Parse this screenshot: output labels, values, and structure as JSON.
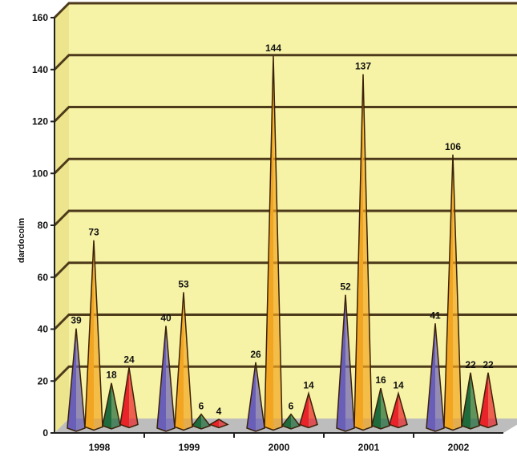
{
  "chart_data": {
    "type": "bar",
    "subtype": "3d-cone",
    "ylabel": "dardocoim",
    "ylim": [
      0,
      160
    ],
    "yticks": [
      "0",
      "20",
      "40",
      "60",
      "80",
      "100",
      "120",
      "140",
      "160"
    ],
    "categories": [
      "1998",
      "1999",
      "2000",
      "2001",
      "2002"
    ],
    "series": [
      {
        "values": [
          39,
          40,
          26,
          52,
          41
        ]
      },
      {
        "values": [
          73,
          53,
          144,
          137,
          106
        ]
      },
      {
        "values": [
          18,
          6,
          6,
          16,
          22
        ]
      },
      {
        "values": [
          24,
          4,
          14,
          14,
          22
        ]
      }
    ],
    "data_labels": [
      [
        "39",
        "73",
        "18",
        "24"
      ],
      [
        "40",
        "53",
        "6",
        "4"
      ],
      [
        "26",
        "144",
        "6",
        "14"
      ],
      [
        "52",
        "137",
        "16",
        "14"
      ],
      [
        "41",
        "106",
        "22",
        "22"
      ]
    ],
    "colors": {
      "series": [
        "#6a5fb8",
        "#f2a521",
        "#1f6b3c",
        "#e8232a"
      ],
      "plot_back": "#f7f3a6",
      "grid": "#4d3a1a",
      "axis": "#222222"
    },
    "grid": true,
    "legend": "none"
  }
}
